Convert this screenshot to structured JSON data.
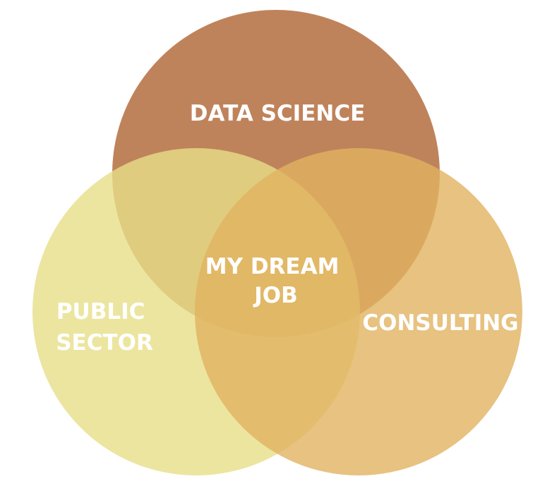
{
  "diagram": {
    "type": "venn",
    "circles": [
      {
        "label_lines": [
          "DATA SCIENCE"
        ],
        "color": "#b87549"
      },
      {
        "label_lines": [
          "PUBLIC",
          "SECTOR"
        ],
        "color": "#e7df88"
      },
      {
        "label_lines": [
          "CONSULTING"
        ],
        "color": "#e1b360"
      }
    ],
    "intersection": {
      "label_lines": [
        "MY DREAM",
        "JOB"
      ]
    },
    "label_color": "#ffffff",
    "background": "#ffffff"
  }
}
